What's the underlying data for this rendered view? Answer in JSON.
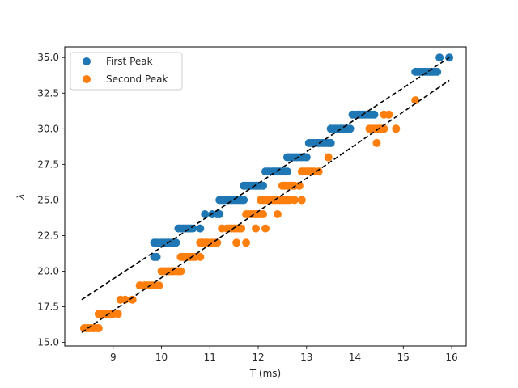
{
  "chart_data": {
    "type": "scatter",
    "title": "",
    "xlabel": "T (ms)",
    "ylabel": "λ",
    "xlim": [
      8.0,
      16.3
    ],
    "ylim": [
      14.75,
      35.75
    ],
    "xticks": [
      9,
      10,
      11,
      12,
      13,
      14,
      15,
      16
    ],
    "yticks": [
      15.0,
      17.5,
      20.0,
      22.5,
      25.0,
      27.5,
      30.0,
      32.5,
      35.0
    ],
    "grid": false,
    "legend": "top-left",
    "series": [
      {
        "name": "First Peak",
        "color": "#1f77b4",
        "points": [
          [
            9.85,
            21
          ],
          [
            9.9,
            21
          ],
          [
            9.85,
            22
          ],
          [
            9.9,
            22
          ],
          [
            9.95,
            22
          ],
          [
            10.0,
            22
          ],
          [
            10.05,
            22
          ],
          [
            10.1,
            22
          ],
          [
            10.15,
            22
          ],
          [
            10.2,
            22
          ],
          [
            10.25,
            22
          ],
          [
            10.3,
            22
          ],
          [
            10.35,
            23
          ],
          [
            10.4,
            23
          ],
          [
            10.45,
            23
          ],
          [
            10.5,
            23
          ],
          [
            10.55,
            23
          ],
          [
            10.6,
            23
          ],
          [
            10.65,
            23
          ],
          [
            10.8,
            23
          ],
          [
            10.9,
            24
          ],
          [
            11.05,
            24
          ],
          [
            11.15,
            24
          ],
          [
            11.2,
            24
          ],
          [
            11.2,
            25
          ],
          [
            11.25,
            25
          ],
          [
            11.3,
            25
          ],
          [
            11.35,
            25
          ],
          [
            11.4,
            25
          ],
          [
            11.45,
            25
          ],
          [
            11.5,
            25
          ],
          [
            11.55,
            25
          ],
          [
            11.6,
            25
          ],
          [
            11.65,
            25
          ],
          [
            11.7,
            25
          ],
          [
            11.7,
            26
          ],
          [
            11.75,
            26
          ],
          [
            11.8,
            26
          ],
          [
            11.85,
            26
          ],
          [
            11.9,
            26
          ],
          [
            11.95,
            26
          ],
          [
            12.0,
            26
          ],
          [
            12.05,
            26
          ],
          [
            12.1,
            26
          ],
          [
            12.15,
            27
          ],
          [
            12.2,
            27
          ],
          [
            12.25,
            27
          ],
          [
            12.3,
            27
          ],
          [
            12.35,
            27
          ],
          [
            12.4,
            27
          ],
          [
            12.45,
            27
          ],
          [
            12.5,
            27
          ],
          [
            12.55,
            27
          ],
          [
            12.6,
            27
          ],
          [
            12.6,
            28
          ],
          [
            12.65,
            28
          ],
          [
            12.7,
            28
          ],
          [
            12.75,
            28
          ],
          [
            12.8,
            28
          ],
          [
            12.85,
            28
          ],
          [
            12.9,
            28
          ],
          [
            12.95,
            28
          ],
          [
            13.0,
            28
          ],
          [
            13.05,
            29
          ],
          [
            13.1,
            29
          ],
          [
            13.15,
            29
          ],
          [
            13.2,
            29
          ],
          [
            13.25,
            29
          ],
          [
            13.3,
            29
          ],
          [
            13.35,
            29
          ],
          [
            13.4,
            29
          ],
          [
            13.45,
            29
          ],
          [
            13.5,
            29
          ],
          [
            13.5,
            30
          ],
          [
            13.55,
            30
          ],
          [
            13.6,
            30
          ],
          [
            13.65,
            30
          ],
          [
            13.7,
            30
          ],
          [
            13.75,
            30
          ],
          [
            13.8,
            30
          ],
          [
            13.85,
            30
          ],
          [
            13.9,
            30
          ],
          [
            13.95,
            31
          ],
          [
            14.0,
            31
          ],
          [
            14.05,
            31
          ],
          [
            14.1,
            31
          ],
          [
            14.15,
            31
          ],
          [
            14.2,
            31
          ],
          [
            14.25,
            31
          ],
          [
            14.3,
            31
          ],
          [
            14.35,
            31
          ],
          [
            14.4,
            31
          ],
          [
            15.25,
            34
          ],
          [
            15.3,
            34
          ],
          [
            15.35,
            34
          ],
          [
            15.4,
            34
          ],
          [
            15.45,
            34
          ],
          [
            15.5,
            34
          ],
          [
            15.55,
            34
          ],
          [
            15.6,
            34
          ],
          [
            15.65,
            34
          ],
          [
            15.7,
            34
          ],
          [
            15.75,
            35
          ],
          [
            15.95,
            35
          ]
        ]
      },
      {
        "name": "Second Peak",
        "color": "#ff7f0e",
        "points": [
          [
            8.4,
            16
          ],
          [
            8.45,
            16
          ],
          [
            8.5,
            16
          ],
          [
            8.55,
            16
          ],
          [
            8.6,
            16
          ],
          [
            8.65,
            16
          ],
          [
            8.7,
            16
          ],
          [
            8.7,
            17
          ],
          [
            8.75,
            17
          ],
          [
            8.8,
            17
          ],
          [
            8.85,
            17
          ],
          [
            8.9,
            17
          ],
          [
            8.95,
            17
          ],
          [
            9.0,
            17
          ],
          [
            9.1,
            17
          ],
          [
            9.15,
            18
          ],
          [
            9.25,
            18
          ],
          [
            9.4,
            18
          ],
          [
            9.55,
            19
          ],
          [
            9.65,
            19
          ],
          [
            9.7,
            19
          ],
          [
            9.75,
            19
          ],
          [
            9.8,
            19
          ],
          [
            9.85,
            19
          ],
          [
            9.95,
            19
          ],
          [
            10.0,
            20
          ],
          [
            10.05,
            20
          ],
          [
            10.1,
            20
          ],
          [
            10.15,
            20
          ],
          [
            10.2,
            20
          ],
          [
            10.25,
            20
          ],
          [
            10.3,
            20
          ],
          [
            10.35,
            20
          ],
          [
            10.4,
            20
          ],
          [
            10.4,
            21
          ],
          [
            10.45,
            21
          ],
          [
            10.5,
            21
          ],
          [
            10.55,
            21
          ],
          [
            10.6,
            21
          ],
          [
            10.65,
            21
          ],
          [
            10.7,
            21
          ],
          [
            10.8,
            21
          ],
          [
            10.8,
            22
          ],
          [
            10.85,
            22
          ],
          [
            10.9,
            22
          ],
          [
            10.95,
            22
          ],
          [
            11.0,
            22
          ],
          [
            11.05,
            22
          ],
          [
            11.1,
            22
          ],
          [
            11.15,
            22
          ],
          [
            11.55,
            22
          ],
          [
            11.75,
            22
          ],
          [
            11.25,
            23
          ],
          [
            11.35,
            23
          ],
          [
            11.4,
            23
          ],
          [
            11.45,
            23
          ],
          [
            11.5,
            23
          ],
          [
            11.55,
            23
          ],
          [
            11.6,
            23
          ],
          [
            11.65,
            23
          ],
          [
            11.95,
            23
          ],
          [
            12.15,
            23
          ],
          [
            11.75,
            24
          ],
          [
            11.8,
            24
          ],
          [
            11.85,
            24
          ],
          [
            11.9,
            24
          ],
          [
            11.95,
            24
          ],
          [
            12.0,
            24
          ],
          [
            12.05,
            24
          ],
          [
            12.1,
            24
          ],
          [
            12.4,
            24
          ],
          [
            12.05,
            25
          ],
          [
            12.1,
            25
          ],
          [
            12.15,
            25
          ],
          [
            12.2,
            25
          ],
          [
            12.25,
            25
          ],
          [
            12.3,
            25
          ],
          [
            12.35,
            25
          ],
          [
            12.4,
            25
          ],
          [
            12.45,
            25
          ],
          [
            12.5,
            25
          ],
          [
            12.55,
            25
          ],
          [
            12.6,
            25
          ],
          [
            12.65,
            25
          ],
          [
            12.75,
            25
          ],
          [
            12.9,
            25
          ],
          [
            12.5,
            26
          ],
          [
            12.55,
            26
          ],
          [
            12.6,
            26
          ],
          [
            12.65,
            26
          ],
          [
            12.7,
            26
          ],
          [
            12.75,
            26
          ],
          [
            12.85,
            26
          ],
          [
            12.9,
            27
          ],
          [
            12.95,
            27
          ],
          [
            13.0,
            27
          ],
          [
            13.05,
            27
          ],
          [
            13.1,
            27
          ],
          [
            13.15,
            27
          ],
          [
            13.25,
            27
          ],
          [
            13.45,
            28
          ],
          [
            14.3,
            30
          ],
          [
            14.35,
            30
          ],
          [
            14.4,
            30
          ],
          [
            14.45,
            30
          ],
          [
            14.5,
            30
          ],
          [
            14.55,
            30
          ],
          [
            14.6,
            30
          ],
          [
            14.85,
            30
          ],
          [
            14.45,
            29
          ],
          [
            14.6,
            31
          ],
          [
            14.7,
            31
          ],
          [
            15.25,
            32
          ]
        ]
      }
    ],
    "trend_lines": [
      {
        "x": [
          8.35,
          15.95
        ],
        "y": [
          18.0,
          35.0
        ]
      },
      {
        "x": [
          8.35,
          15.95
        ],
        "y": [
          15.7,
          33.4
        ]
      }
    ]
  }
}
